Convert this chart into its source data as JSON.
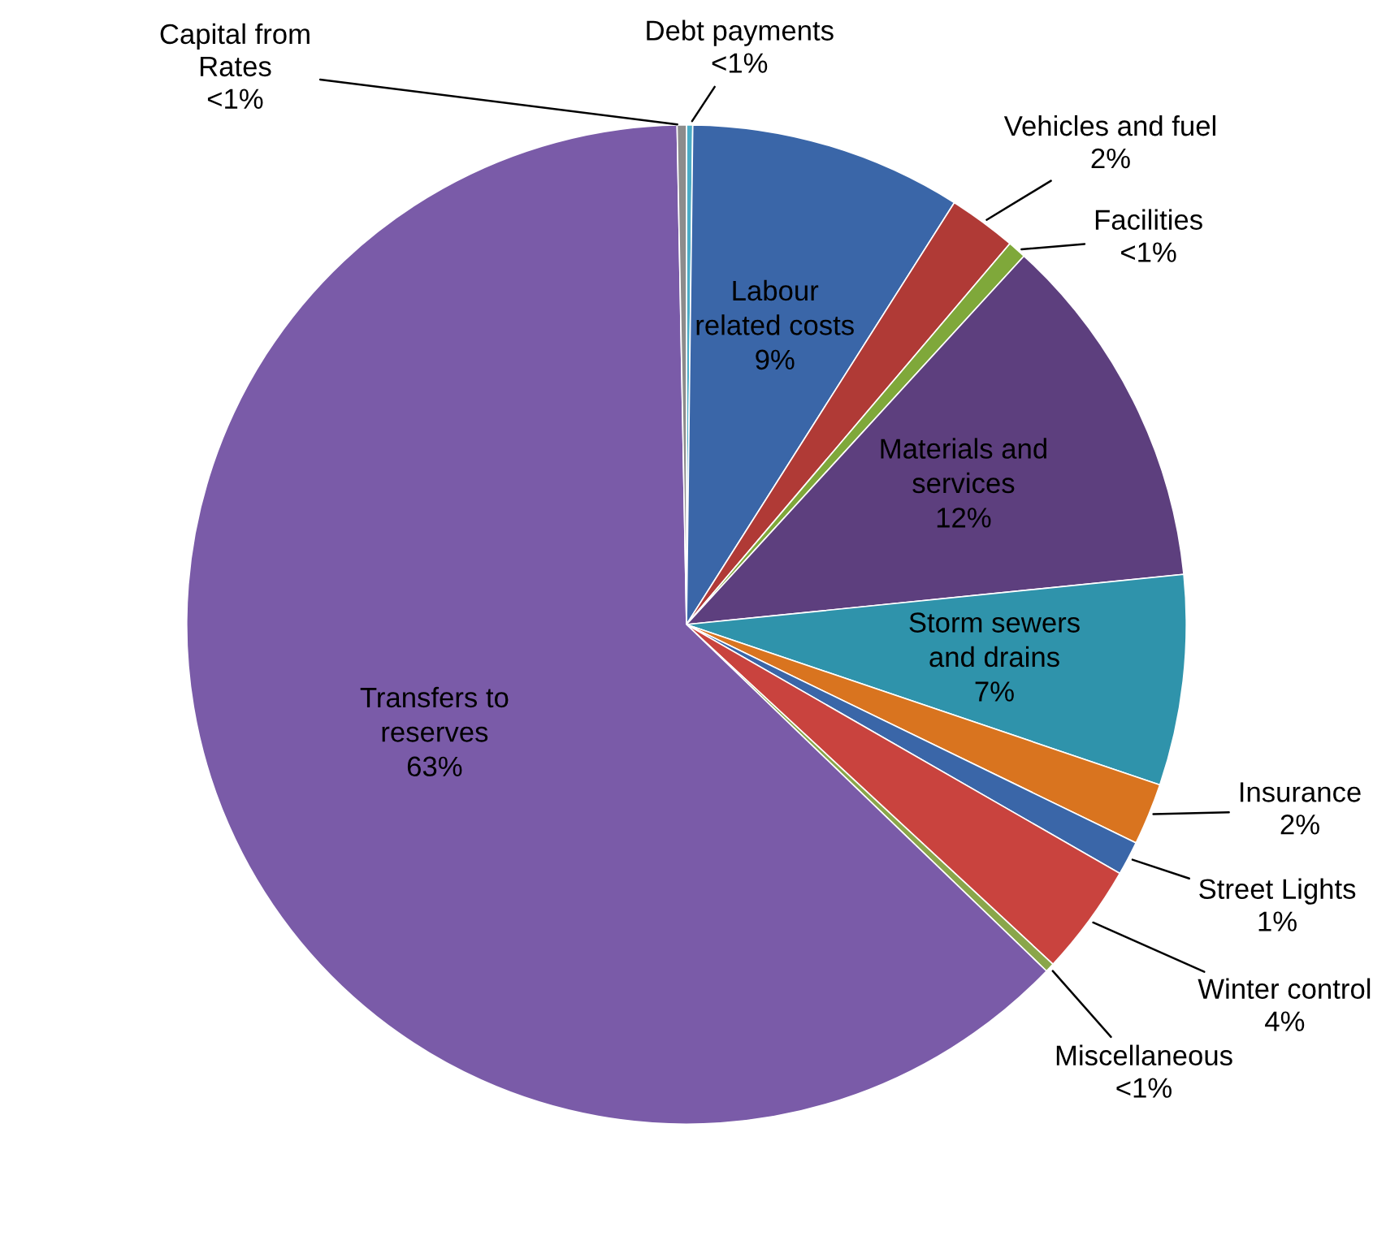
{
  "chart_data": {
    "type": "pie",
    "categories": [
      "Debt payments",
      "Labour\nrelated costs",
      "Vehicles and fuel",
      "Facilities",
      "Materials and services",
      "Storm sewers and drains",
      "Insurance",
      "Street Lights",
      "Winter control",
      "Miscellaneous",
      "Transfers to\nreserves",
      "Capital from\nRates"
    ],
    "values": [
      0.2,
      8.8,
      2.2,
      0.6,
      11.6,
      6.8,
      2.0,
      1.1,
      3.6,
      0.3,
      62.5,
      0.3
    ],
    "value_labels": [
      "<1%",
      "9%",
      "2%",
      "<1%",
      "12%",
      "7%",
      "2%",
      "1%",
      "4%",
      "<1%",
      "63%",
      "<1%"
    ],
    "colors": [
      "#4bacc6",
      "#3a66a8",
      "#b03a36",
      "#7fa83a",
      "#5d3f7e",
      "#2f93ab",
      "#d9741f",
      "#3a66a8",
      "#c9433e",
      "#8aa64a",
      "#7a5ba8",
      "#8c8c8c"
    ]
  }
}
